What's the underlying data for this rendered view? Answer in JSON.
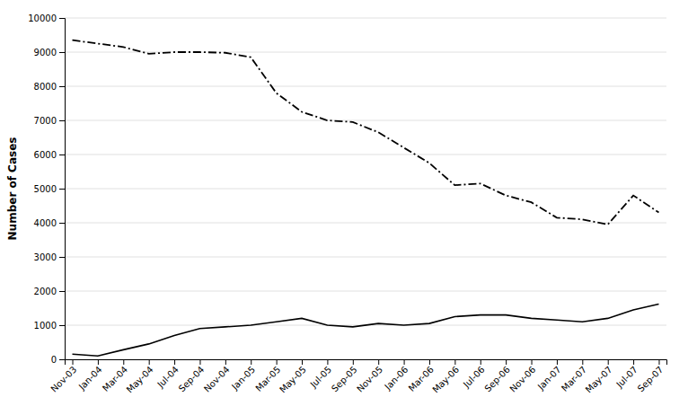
{
  "chart_data": {
    "type": "line",
    "ylabel": "Number of Cases",
    "categories": [
      "Nov-03",
      "Jan-04",
      "Mar-04",
      "May-04",
      "Jul-04",
      "Sep-04",
      "Nov-04",
      "Jan-05",
      "Mar-05",
      "May-05",
      "Jul-05",
      "Sep-05",
      "Nov-05",
      "Jan-06",
      "Mar-06",
      "May-06",
      "Jul-06",
      "Sep-06",
      "Nov-06",
      "Jan-07",
      "Mar-07",
      "May-07",
      "Jul-07",
      "Sep-07"
    ],
    "series": [
      {
        "color": "#000000",
        "line_style": "dash-dot",
        "values": [
          9350,
          9250,
          9150,
          8950,
          9000,
          9000,
          8980,
          8850,
          7800,
          7250,
          7000,
          6950,
          6650,
          6200,
          5750,
          5100,
          5150,
          4800,
          4600,
          4150,
          4100,
          3950,
          4800,
          4300
        ]
      },
      {
        "color": "#000000",
        "line_style": "solid",
        "values": [
          150,
          100,
          280,
          450,
          700,
          900,
          950,
          1000,
          1100,
          1200,
          1000,
          950,
          1050,
          1000,
          1050,
          1250,
          1300,
          1300,
          1200,
          1150,
          1100,
          1200,
          1450,
          1620
        ]
      }
    ],
    "ylim": [
      0,
      10000
    ],
    "yticks": [
      0,
      1000,
      2000,
      3000,
      4000,
      5000,
      6000,
      7000,
      8000,
      9000,
      10000
    ],
    "grid": true
  }
}
